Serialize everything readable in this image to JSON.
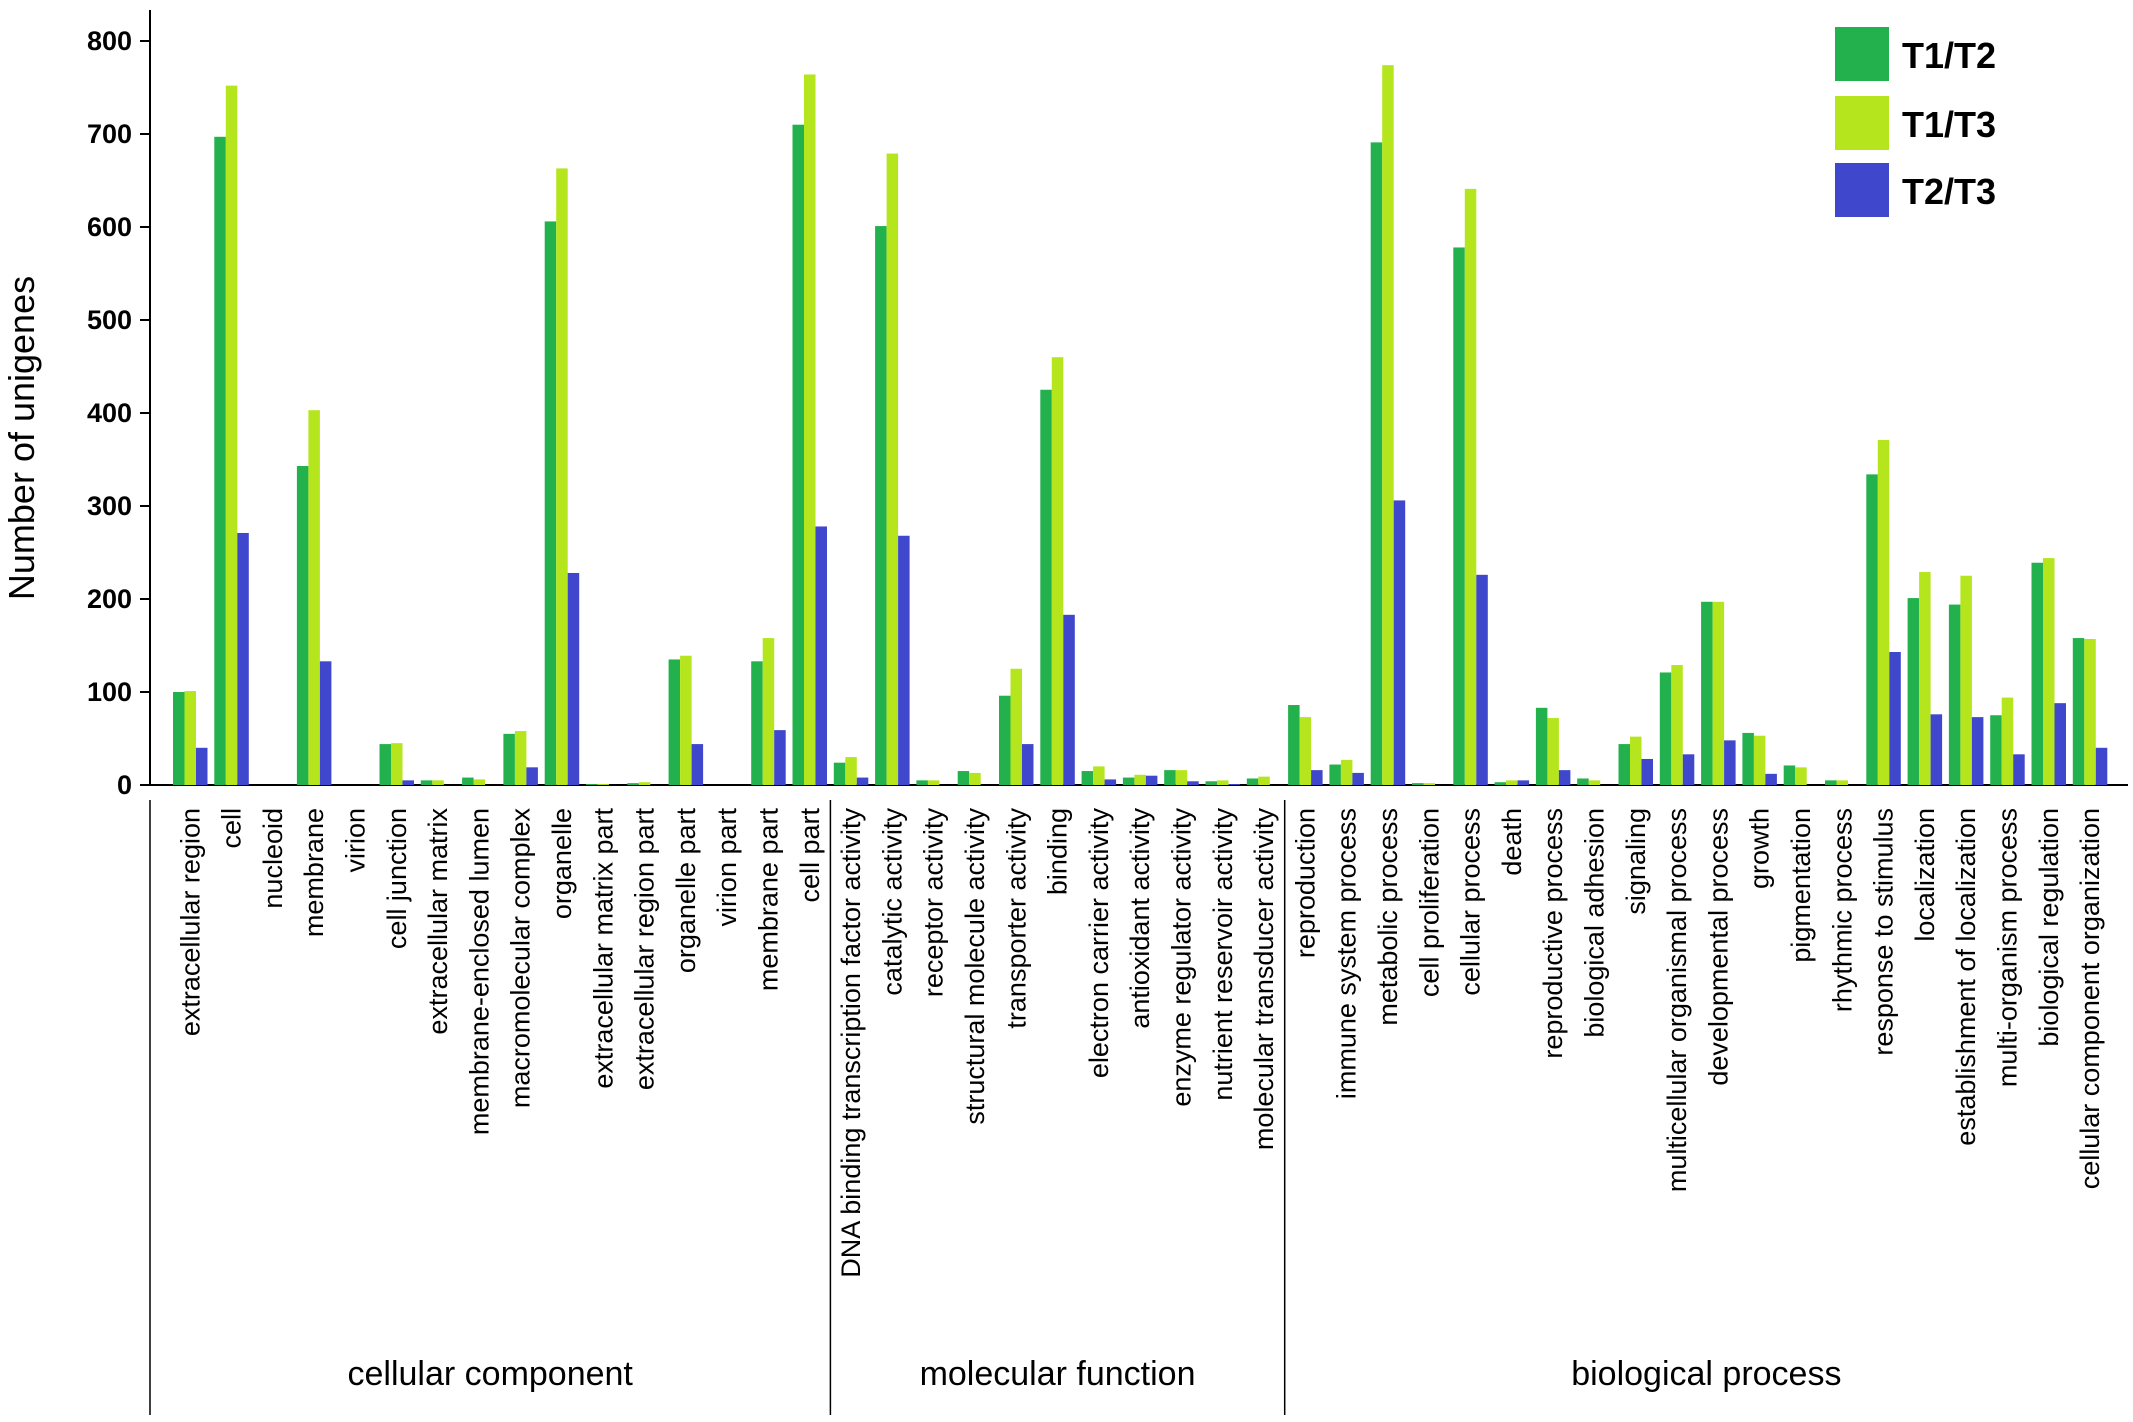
{
  "chart_data": {
    "type": "bar",
    "ylabel": "Number of unigenes",
    "xlabel": "",
    "ylim": [
      0,
      800
    ],
    "yticks": [
      0,
      100,
      200,
      300,
      400,
      500,
      600,
      700,
      800
    ],
    "legend_position": "top-right",
    "colors": {
      "T1/T2": "#22b14c",
      "T1/T3": "#b5e61d",
      "T2/T3": "#3f48cc"
    },
    "groups": [
      {
        "name": "cellular component",
        "start": 0,
        "count": 16
      },
      {
        "name": "molecular function",
        "start": 16,
        "count": 11
      },
      {
        "name": "biological process",
        "start": 27,
        "count": 20
      }
    ],
    "categories": [
      "extracellular region",
      "cell",
      "nucleoid",
      "membrane",
      "virion",
      "cell junction",
      "extracellular matrix",
      "membrane-enclosed lumen",
      "macromolecular complex",
      "organelle",
      "extracellular matrix part",
      "extracellular region part",
      "organelle part",
      "virion part",
      "membrane part",
      "cell part",
      "DNA binding transcription factor activity",
      "catalytic activity",
      "receptor activity",
      "structural molecule activity",
      "transporter activity",
      "binding",
      "electron carrier activity",
      "antioxidant activity",
      "enzyme regulator activity",
      "nutrient reservoir activity",
      "molecular transducer activity",
      "reproduction",
      "immune system process",
      "metabolic process",
      "cell proliferation",
      "cellular process",
      "death",
      "reproductive process",
      "biological adhesion",
      "signaling",
      "multicellular organismal process",
      "developmental process",
      "growth",
      "pigmentation",
      "rhythmic process",
      "response to stimulus",
      "localization",
      "establishment of localization",
      "multi-organism process",
      "biological regulation",
      "cellular component organization"
    ],
    "series": [
      {
        "name": "T1/T2",
        "values": [
          100,
          697,
          0,
          343,
          0,
          44,
          5,
          8,
          55,
          606,
          1,
          2,
          135,
          0,
          133,
          710,
          24,
          601,
          5,
          15,
          96,
          425,
          15,
          8,
          16,
          4,
          7,
          86,
          22,
          691,
          2,
          578,
          3,
          83,
          7,
          44,
          121,
          197,
          56,
          21,
          5,
          334,
          201,
          194,
          75,
          239,
          158
        ]
      },
      {
        "name": "T1/T3",
        "values": [
          101,
          752,
          0,
          403,
          0,
          45,
          5,
          6,
          58,
          663,
          1,
          3,
          139,
          0,
          158,
          764,
          30,
          679,
          5,
          13,
          125,
          460,
          20,
          11,
          16,
          5,
          9,
          73,
          27,
          774,
          2,
          641,
          5,
          72,
          5,
          52,
          129,
          197,
          53,
          19,
          5,
          371,
          229,
          225,
          94,
          244,
          157
        ]
      },
      {
        "name": "T2/T3",
        "values": [
          40,
          271,
          0,
          133,
          0,
          5,
          0,
          0,
          19,
          228,
          0,
          0,
          44,
          0,
          59,
          278,
          8,
          268,
          0,
          0,
          44,
          183,
          6,
          10,
          4,
          1,
          0,
          16,
          13,
          306,
          0,
          226,
          5,
          16,
          0,
          28,
          33,
          48,
          12,
          0,
          0,
          143,
          76,
          73,
          33,
          88,
          40
        ]
      }
    ]
  }
}
